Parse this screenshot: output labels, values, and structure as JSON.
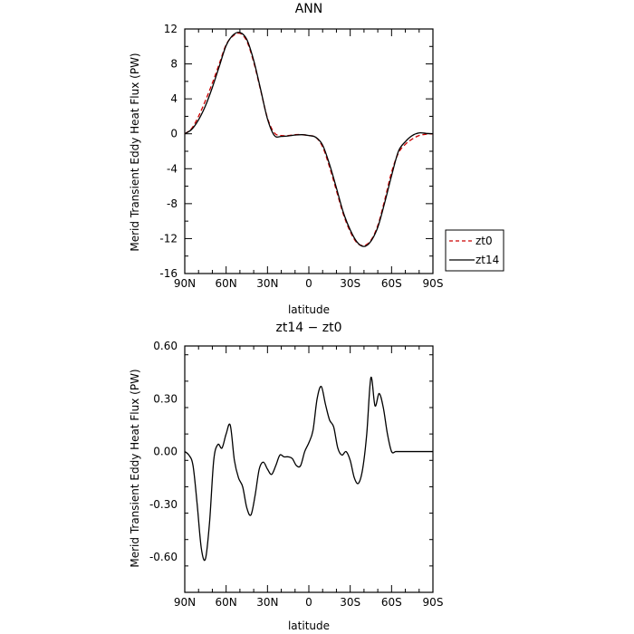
{
  "chart_data": [
    {
      "type": "line",
      "title": "ANN",
      "xlabel": "latitude",
      "ylabel": "Merid Transient Eddy Heat Flux (PW)",
      "x_ticks": [
        "90N",
        "60N",
        "30N",
        "0",
        "30S",
        "60S",
        "90S"
      ],
      "xlim": [
        -90,
        90
      ],
      "ylim": [
        -16,
        12
      ],
      "y_ticks": [
        12,
        8,
        4,
        0,
        -4,
        -8,
        -12,
        -16
      ],
      "legend": "right",
      "series": [
        {
          "name": "zt0",
          "color": "#cc0000",
          "dashed": true,
          "x": [
            -90,
            -85,
            -80,
            -75,
            -70,
            -65,
            -60,
            -55,
            -50,
            -45,
            -40,
            -35,
            -30,
            -25,
            -20,
            -15,
            -10,
            -5,
            0,
            5,
            10,
            15,
            20,
            25,
            30,
            35,
            40,
            45,
            50,
            55,
            60,
            65,
            70,
            75,
            80,
            85,
            90
          ],
          "y": [
            0,
            0.6,
            2,
            3.8,
            5.8,
            8,
            10.2,
            11.2,
            11.5,
            10.6,
            8.2,
            5,
            1.8,
            0.1,
            -0.2,
            -0.2,
            -0.1,
            -0.1,
            -0.2,
            -0.4,
            -1.5,
            -3.8,
            -6.5,
            -9.2,
            -11.2,
            -12.5,
            -12.8,
            -12.2,
            -10.5,
            -7.6,
            -4.4,
            -2.2,
            -1.2,
            -0.6,
            -0.2,
            -0.05,
            0
          ]
        },
        {
          "name": "zt14",
          "color": "#000000",
          "dashed": false,
          "x": [
            -90,
            -85,
            -80,
            -75,
            -70,
            -65,
            -60,
            -55,
            -50,
            -45,
            -40,
            -35,
            -30,
            -25,
            -20,
            -15,
            -10,
            -5,
            0,
            5,
            10,
            15,
            20,
            25,
            30,
            35,
            40,
            45,
            50,
            55,
            60,
            65,
            70,
            75,
            80,
            85,
            90
          ],
          "y": [
            0,
            0.5,
            1.6,
            3.2,
            5.3,
            7.7,
            10.1,
            11.3,
            11.6,
            10.8,
            8.4,
            5.1,
            1.7,
            -0.2,
            -0.3,
            -0.25,
            -0.15,
            -0.1,
            -0.2,
            -0.4,
            -1.3,
            -3.5,
            -6.2,
            -9.0,
            -11.0,
            -12.4,
            -12.9,
            -12.3,
            -10.7,
            -7.9,
            -4.8,
            -2.0,
            -0.9,
            -0.2,
            0.1,
            0.05,
            0
          ]
        }
      ]
    },
    {
      "type": "line",
      "title": "zt14 − zt0",
      "xlabel": "latitude",
      "ylabel": "Merid Transient Eddy Heat Flux (PW)",
      "x_ticks": [
        "90N",
        "60N",
        "30N",
        "0",
        "30S",
        "60S",
        "90S"
      ],
      "xlim": [
        -90,
        90
      ],
      "ylim": [
        -0.8,
        0.6
      ],
      "y_ticks": [
        0.6,
        0.3,
        0.0,
        -0.3,
        -0.6
      ],
      "y_tick_labels": [
        "0.60",
        "0.30",
        "0.00",
        "-0.30",
        "-0.60"
      ],
      "series": [
        {
          "color": "#000000",
          "dashed": false,
          "x": [
            -90,
            -87,
            -84,
            -81,
            -78,
            -75,
            -72,
            -69,
            -66,
            -63,
            -60,
            -57,
            -54,
            -51,
            -48,
            -45,
            -42,
            -39,
            -36,
            -33,
            -30,
            -27,
            -24,
            -21,
            -18,
            -15,
            -12,
            -9,
            -6,
            -3,
            0,
            3,
            6,
            9,
            12,
            15,
            18,
            21,
            24,
            27,
            30,
            33,
            36,
            39,
            42,
            45,
            48,
            51,
            54,
            57,
            60,
            63,
            66,
            69,
            72,
            75,
            78,
            81,
            84,
            87,
            90
          ],
          "y": [
            0.0,
            -0.02,
            -0.08,
            -0.3,
            -0.55,
            -0.61,
            -0.4,
            -0.05,
            0.04,
            0.02,
            0.1,
            0.15,
            -0.05,
            -0.15,
            -0.2,
            -0.32,
            -0.36,
            -0.25,
            -0.1,
            -0.06,
            -0.1,
            -0.13,
            -0.08,
            -0.02,
            -0.03,
            -0.03,
            -0.04,
            -0.08,
            -0.08,
            0.0,
            0.05,
            0.12,
            0.3,
            0.37,
            0.27,
            0.18,
            0.14,
            0.02,
            -0.02,
            0.0,
            -0.05,
            -0.15,
            -0.18,
            -0.1,
            0.1,
            0.42,
            0.26,
            0.33,
            0.25,
            0.1,
            0.0,
            0.0,
            0.0,
            0.0,
            0.0,
            0.0,
            0.0,
            0.0,
            0.0,
            0.0,
            0.0
          ]
        }
      ]
    }
  ]
}
